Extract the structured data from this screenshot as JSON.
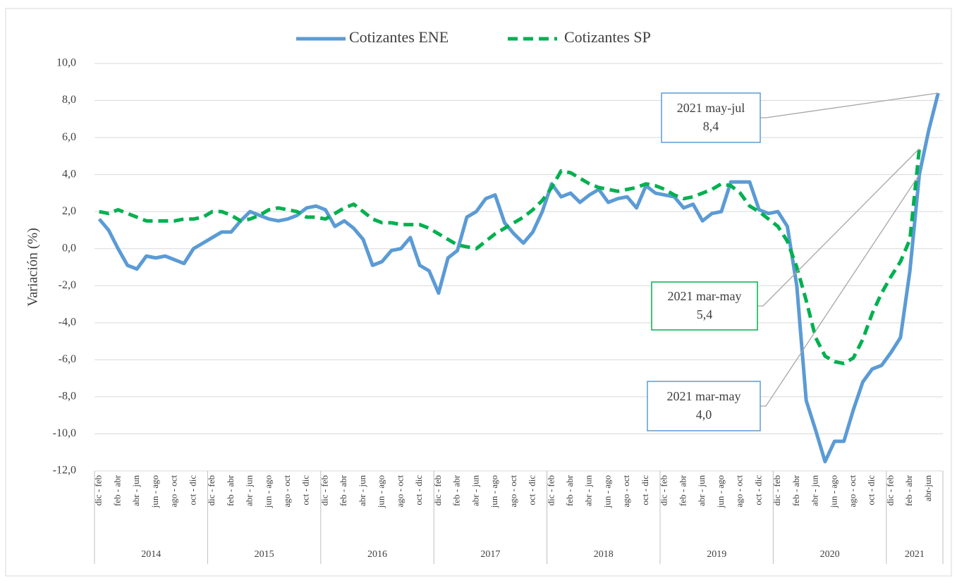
{
  "chart_data": {
    "type": "line",
    "ylabel": "Variación (%)",
    "ylim": [
      -12,
      10
    ],
    "yticks": [
      {
        "value": -12,
        "label": "-12,0"
      },
      {
        "value": -10,
        "label": "-10,0"
      },
      {
        "value": -8,
        "label": "-8,0"
      },
      {
        "value": -6,
        "label": "-6,0"
      },
      {
        "value": -4,
        "label": "-4,0"
      },
      {
        "value": -2,
        "label": "-2,0"
      },
      {
        "value": 0,
        "label": "0,0"
      },
      {
        "value": 2,
        "label": "2,0"
      },
      {
        "value": 4,
        "label": "4,0"
      },
      {
        "value": 6,
        "label": "6,0"
      },
      {
        "value": 8,
        "label": "8,0"
      },
      {
        "value": 10,
        "label": "10,0"
      }
    ],
    "grid": true,
    "legend": "top",
    "categories": [
      "dic - feb",
      null,
      "feb - abr",
      null,
      "abr - jun",
      null,
      "jun - ago",
      null,
      "ago - oct",
      null,
      "oct - dic",
      null,
      "dic - feb",
      null,
      "feb - abr",
      null,
      "abr - jun",
      null,
      "jun - ago",
      null,
      "ago - oct",
      null,
      "oct - dic",
      null,
      "dic - feb",
      null,
      "feb - abr",
      null,
      "abr - jun",
      null,
      "jun - ago",
      null,
      "ago - oct",
      null,
      "oct - dic",
      null,
      "dic - feb",
      null,
      "feb - abr",
      null,
      "abr - jun",
      null,
      "jun - ago",
      null,
      "ago - oct",
      null,
      "oct - dic",
      null,
      "dic - feb",
      null,
      "feb - abr",
      null,
      "abr - jun",
      null,
      "jun - ago",
      null,
      "ago - oct",
      null,
      "oct - dic",
      null,
      "dic - feb",
      null,
      "feb - abr",
      null,
      "abr - jun",
      null,
      "jun - ago",
      null,
      "ago - oct",
      null,
      "oct - dic",
      null,
      "dic - feb",
      null,
      "feb - abr",
      null,
      "abr - jun",
      null,
      "jun - ago",
      null,
      "ago - oct",
      null,
      "oct - dic",
      null,
      "dic - feb",
      null,
      "feb - abr",
      null,
      "abr-jun",
      null
    ],
    "groups": [
      {
        "label": "2014",
        "count": 12
      },
      {
        "label": "2015",
        "count": 12
      },
      {
        "label": "2016",
        "count": 12
      },
      {
        "label": "2017",
        "count": 12
      },
      {
        "label": "2018",
        "count": 12
      },
      {
        "label": "2019",
        "count": 12
      },
      {
        "label": "2020",
        "count": 12
      },
      {
        "label": "2021",
        "count": 6
      }
    ],
    "series": [
      {
        "name": "Cotizantes ENE",
        "color": "#5b9bd5",
        "style": "solid",
        "values": [
          1.6,
          1.0,
          0.0,
          -0.9,
          -1.1,
          -0.4,
          -0.5,
          -0.4,
          -0.6,
          -0.8,
          0.0,
          0.3,
          0.6,
          0.9,
          0.9,
          1.5,
          2.0,
          1.8,
          1.6,
          1.5,
          1.6,
          1.8,
          2.2,
          2.3,
          2.1,
          1.2,
          1.5,
          1.1,
          0.5,
          -0.9,
          -0.7,
          -0.1,
          0.0,
          0.6,
          -0.9,
          -1.2,
          -2.4,
          -0.5,
          -0.1,
          1.7,
          2.0,
          2.7,
          2.9,
          1.4,
          0.8,
          0.3,
          0.9,
          2.0,
          3.5,
          2.8,
          3.0,
          2.5,
          2.9,
          3.2,
          2.5,
          2.7,
          2.8,
          2.2,
          3.4,
          3.0,
          2.9,
          2.8,
          2.2,
          2.4,
          1.5,
          1.9,
          2.0,
          3.6,
          3.6,
          3.6,
          2.1,
          1.9,
          2.0,
          1.2,
          -2.0,
          -8.2,
          -9.8,
          -11.5,
          -10.4,
          -10.4,
          -8.7,
          -7.2,
          -6.5,
          -6.3,
          -5.6,
          -4.8,
          -1.2,
          4.0,
          6.4,
          8.4
        ]
      },
      {
        "name": "Cotizantes SP",
        "color": "#00b050",
        "style": "dashed",
        "values": [
          2.0,
          1.9,
          2.1,
          1.9,
          1.7,
          1.5,
          1.5,
          1.5,
          1.5,
          1.6,
          1.6,
          1.7,
          2.0,
          2.0,
          1.8,
          1.5,
          1.6,
          1.8,
          2.1,
          2.2,
          2.1,
          2.0,
          1.7,
          1.7,
          1.6,
          1.9,
          2.2,
          2.4,
          2.0,
          1.6,
          1.4,
          1.4,
          1.3,
          1.3,
          1.3,
          1.1,
          0.8,
          0.5,
          0.2,
          0.1,
          0.0,
          0.4,
          0.8,
          1.1,
          1.4,
          1.7,
          2.1,
          2.6,
          3.3,
          4.2,
          4.1,
          3.8,
          3.5,
          3.3,
          3.2,
          3.1,
          3.2,
          3.3,
          3.5,
          3.4,
          3.2,
          2.9,
          2.7,
          2.8,
          3.0,
          3.2,
          3.5,
          3.4,
          3.0,
          2.3,
          2.0,
          1.6,
          1.2,
          0.4,
          -1.0,
          -2.8,
          -4.8,
          -5.8,
          -6.1,
          -6.2,
          -5.9,
          -4.9,
          -3.5,
          -2.4,
          -1.5,
          -0.7,
          0.5,
          5.4,
          null,
          null
        ]
      }
    ],
    "annotations": [
      {
        "text": "2021 may-jul",
        "value": 8.4,
        "value_label": "8,4",
        "color": "#5b9bd5"
      },
      {
        "text": "2021 mar-may",
        "value": 5.4,
        "value_label": "5,4",
        "color": "#00b050"
      },
      {
        "text": "2021 mar-may",
        "value": 4.0,
        "value_label": "4,0",
        "color": "#5b9bd5"
      }
    ]
  }
}
